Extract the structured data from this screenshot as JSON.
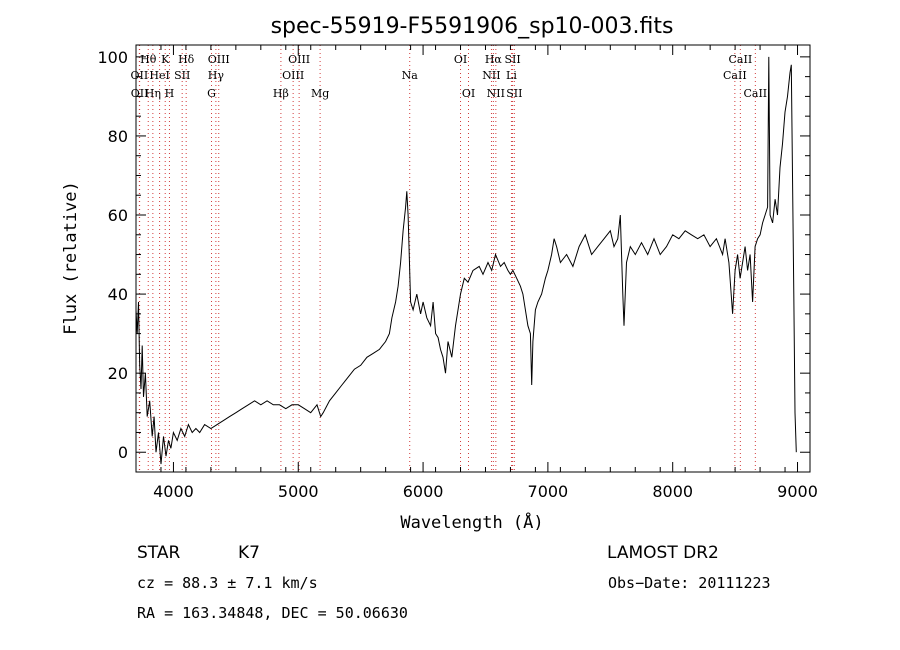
{
  "chart_data": {
    "type": "line",
    "title": "spec-55919-F5591906_sp10-003.fits",
    "xlabel": "Wavelength (Å)",
    "ylabel": "Flux (relative)",
    "xlim": [
      3700,
      9100
    ],
    "ylim": [
      -5,
      103
    ],
    "xticks": [
      4000,
      5000,
      6000,
      7000,
      8000,
      9000
    ],
    "yticks": [
      0,
      20,
      40,
      60,
      80,
      100
    ],
    "grid": false,
    "series": [
      {
        "name": "flux",
        "points": [
          [
            3700,
            36
          ],
          [
            3710,
            30
          ],
          [
            3720,
            38
          ],
          [
            3730,
            22
          ],
          [
            3740,
            16
          ],
          [
            3750,
            27
          ],
          [
            3760,
            14
          ],
          [
            3775,
            20
          ],
          [
            3790,
            9
          ],
          [
            3810,
            13
          ],
          [
            3830,
            4
          ],
          [
            3845,
            9
          ],
          [
            3860,
            0
          ],
          [
            3880,
            5
          ],
          [
            3900,
            -3
          ],
          [
            3920,
            4
          ],
          [
            3940,
            -1
          ],
          [
            3960,
            3
          ],
          [
            3980,
            1
          ],
          [
            4000,
            5
          ],
          [
            4030,
            3
          ],
          [
            4060,
            6
          ],
          [
            4090,
            4
          ],
          [
            4120,
            7
          ],
          [
            4150,
            5
          ],
          [
            4180,
            6
          ],
          [
            4210,
            5
          ],
          [
            4250,
            7
          ],
          [
            4300,
            6
          ],
          [
            4350,
            7
          ],
          [
            4400,
            8
          ],
          [
            4450,
            9
          ],
          [
            4500,
            10
          ],
          [
            4550,
            11
          ],
          [
            4600,
            12
          ],
          [
            4650,
            13
          ],
          [
            4700,
            12
          ],
          [
            4750,
            13
          ],
          [
            4800,
            12
          ],
          [
            4850,
            12
          ],
          [
            4900,
            11
          ],
          [
            4950,
            12
          ],
          [
            5000,
            12
          ],
          [
            5050,
            11
          ],
          [
            5100,
            10
          ],
          [
            5150,
            12
          ],
          [
            5180,
            9
          ],
          [
            5200,
            10
          ],
          [
            5250,
            13
          ],
          [
            5300,
            15
          ],
          [
            5350,
            17
          ],
          [
            5400,
            19
          ],
          [
            5450,
            21
          ],
          [
            5500,
            22
          ],
          [
            5550,
            24
          ],
          [
            5600,
            25
          ],
          [
            5650,
            26
          ],
          [
            5700,
            28
          ],
          [
            5730,
            30
          ],
          [
            5750,
            34
          ],
          [
            5780,
            38
          ],
          [
            5800,
            42
          ],
          [
            5820,
            48
          ],
          [
            5840,
            56
          ],
          [
            5860,
            62
          ],
          [
            5870,
            66
          ],
          [
            5880,
            60
          ],
          [
            5900,
            38
          ],
          [
            5920,
            36
          ],
          [
            5950,
            40
          ],
          [
            5980,
            35
          ],
          [
            6000,
            38
          ],
          [
            6030,
            34
          ],
          [
            6060,
            32
          ],
          [
            6080,
            38
          ],
          [
            6100,
            30
          ],
          [
            6120,
            29
          ],
          [
            6140,
            26
          ],
          [
            6160,
            24
          ],
          [
            6180,
            20
          ],
          [
            6200,
            28
          ],
          [
            6230,
            24
          ],
          [
            6260,
            32
          ],
          [
            6280,
            36
          ],
          [
            6300,
            40
          ],
          [
            6330,
            44
          ],
          [
            6360,
            43
          ],
          [
            6400,
            46
          ],
          [
            6450,
            47
          ],
          [
            6480,
            45
          ],
          [
            6520,
            48
          ],
          [
            6550,
            46
          ],
          [
            6580,
            50
          ],
          [
            6620,
            47
          ],
          [
            6650,
            48
          ],
          [
            6680,
            46
          ],
          [
            6700,
            45
          ],
          [
            6720,
            46
          ],
          [
            6750,
            44
          ],
          [
            6780,
            42
          ],
          [
            6800,
            40
          ],
          [
            6820,
            36
          ],
          [
            6840,
            32
          ],
          [
            6860,
            30
          ],
          [
            6870,
            17
          ],
          [
            6880,
            28
          ],
          [
            6900,
            36
          ],
          [
            6920,
            38
          ],
          [
            6950,
            40
          ],
          [
            6980,
            44
          ],
          [
            7000,
            46
          ],
          [
            7030,
            50
          ],
          [
            7050,
            54
          ],
          [
            7070,
            52
          ],
          [
            7100,
            48
          ],
          [
            7150,
            50
          ],
          [
            7200,
            47
          ],
          [
            7250,
            52
          ],
          [
            7300,
            55
          ],
          [
            7350,
            50
          ],
          [
            7400,
            52
          ],
          [
            7450,
            54
          ],
          [
            7500,
            56
          ],
          [
            7530,
            52
          ],
          [
            7560,
            54
          ],
          [
            7580,
            60
          ],
          [
            7600,
            40
          ],
          [
            7610,
            32
          ],
          [
            7630,
            48
          ],
          [
            7660,
            52
          ],
          [
            7700,
            50
          ],
          [
            7750,
            53
          ],
          [
            7800,
            50
          ],
          [
            7850,
            54
          ],
          [
            7900,
            50
          ],
          [
            7950,
            52
          ],
          [
            8000,
            55
          ],
          [
            8050,
            54
          ],
          [
            8100,
            56
          ],
          [
            8150,
            55
          ],
          [
            8200,
            54
          ],
          [
            8250,
            55
          ],
          [
            8300,
            52
          ],
          [
            8350,
            54
          ],
          [
            8400,
            50
          ],
          [
            8420,
            54
          ],
          [
            8450,
            48
          ],
          [
            8480,
            35
          ],
          [
            8500,
            46
          ],
          [
            8520,
            50
          ],
          [
            8540,
            44
          ],
          [
            8560,
            48
          ],
          [
            8580,
            52
          ],
          [
            8600,
            46
          ],
          [
            8620,
            50
          ],
          [
            8640,
            38
          ],
          [
            8660,
            52
          ],
          [
            8680,
            54
          ],
          [
            8700,
            55
          ],
          [
            8720,
            58
          ],
          [
            8740,
            60
          ],
          [
            8760,
            62
          ],
          [
            8770,
            100
          ],
          [
            8780,
            60
          ],
          [
            8800,
            58
          ],
          [
            8820,
            64
          ],
          [
            8840,
            60
          ],
          [
            8860,
            72
          ],
          [
            8880,
            78
          ],
          [
            8900,
            86
          ],
          [
            8920,
            90
          ],
          [
            8940,
            96
          ],
          [
            8950,
            98
          ],
          [
            8960,
            70
          ],
          [
            8970,
            40
          ],
          [
            8980,
            10
          ],
          [
            8990,
            0
          ]
        ]
      }
    ],
    "lines": [
      {
        "label": "Hθ",
        "x": 3798,
        "row": 1
      },
      {
        "label": "OII",
        "x": 3727,
        "row": 2
      },
      {
        "label": "OII",
        "x": 3729,
        "row": 3
      },
      {
        "label": "Hη",
        "x": 3835,
        "row": 3
      },
      {
        "label": "HeI",
        "x": 3889,
        "row": 2
      },
      {
        "label": "K",
        "x": 3934,
        "row": 1
      },
      {
        "label": "H",
        "x": 3968,
        "row": 3
      },
      {
        "label": "SII",
        "x": 4070,
        "row": 2
      },
      {
        "label": "Hδ",
        "x": 4102,
        "row": 1
      },
      {
        "label": "OIII",
        "x": 4363,
        "row": 1
      },
      {
        "label": "Hγ",
        "x": 4340,
        "row": 2
      },
      {
        "label": "G",
        "x": 4305,
        "row": 3
      },
      {
        "label": "Hβ",
        "x": 4861,
        "row": 3
      },
      {
        "label": "OIII",
        "x": 5007,
        "row": 1
      },
      {
        "label": "OIII",
        "x": 4959,
        "row": 2
      },
      {
        "label": "Mg",
        "x": 5175,
        "row": 3
      },
      {
        "label": "Na",
        "x": 5893,
        "row": 2
      },
      {
        "label": "OI",
        "x": 6300,
        "row": 1
      },
      {
        "label": "OI",
        "x": 6364,
        "row": 3
      },
      {
        "label": "Hα",
        "x": 6563,
        "row": 1
      },
      {
        "label": "SII",
        "x": 6717,
        "row": 1
      },
      {
        "label": "NII",
        "x": 6548,
        "row": 2
      },
      {
        "label": "Li",
        "x": 6708,
        "row": 2
      },
      {
        "label": "NII",
        "x": 6583,
        "row": 3
      },
      {
        "label": "SII",
        "x": 6731,
        "row": 3
      },
      {
        "label": "CaII",
        "x": 8542,
        "row": 1
      },
      {
        "label": "CaII",
        "x": 8498,
        "row": 2
      },
      {
        "label": "CaII",
        "x": 8662,
        "row": 3
      }
    ]
  },
  "info": {
    "object_class": "STAR",
    "subclass": "K7",
    "survey": "LAMOST DR2",
    "cz": "cz = 88.3 ± 7.1 km/s",
    "obs_date": "Obs−Date: 20111223",
    "coords": "RA = 163.34848, DEC =  50.06630"
  },
  "colors": {
    "spectrum": "#000000",
    "line_marker": "#d23c3c",
    "axis": "#000000"
  }
}
